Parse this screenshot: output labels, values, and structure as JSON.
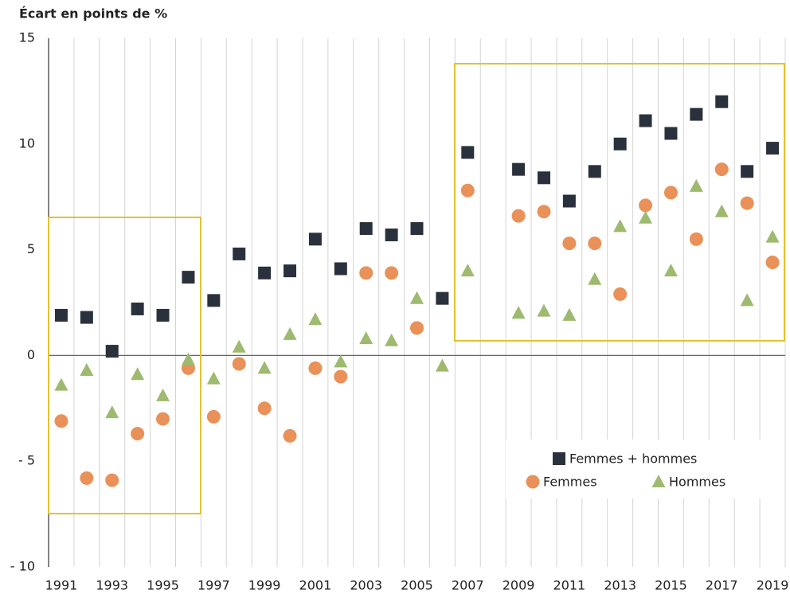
{
  "chart_data": {
    "type": "scatter",
    "title": "Écart en points de %",
    "categories": [
      "1991",
      null,
      "1993",
      null,
      "1995",
      null,
      "1997",
      null,
      "1999",
      null,
      "2001",
      null,
      "2003",
      null,
      "2005",
      null,
      "2007",
      null,
      "2009",
      null,
      "2011",
      null,
      "2013",
      null,
      "2015",
      null,
      "2017",
      null,
      "2019"
    ],
    "ylim": [
      -10,
      15
    ],
    "yticks": [
      {
        "value": -10,
        "label": "- 10"
      },
      {
        "value": -5,
        "label": "- 5"
      },
      0,
      5,
      10,
      15
    ],
    "series": [
      {
        "name": "Femmes + hommes",
        "color": "#2b313c",
        "marker": "square",
        "values": [
          1.9,
          1.8,
          0.2,
          2.2,
          1.9,
          3.7,
          2.6,
          4.8,
          3.9,
          4.0,
          5.5,
          4.1,
          6.0,
          5.7,
          6.0,
          2.7,
          9.6,
          null,
          8.8,
          8.4,
          7.3,
          8.7,
          10.0,
          11.1,
          10.5,
          11.4,
          12.0,
          8.7,
          9.8
        ]
      },
      {
        "name": "Femmes",
        "color": "#e99158",
        "marker": "circle",
        "values": [
          -3.1,
          -5.8,
          -5.9,
          -3.7,
          -3.0,
          -0.6,
          -2.9,
          -0.4,
          -2.5,
          -3.8,
          -0.6,
          -1.0,
          3.9,
          3.9,
          1.3,
          null,
          7.8,
          null,
          6.6,
          6.8,
          5.3,
          5.3,
          2.9,
          7.1,
          7.7,
          5.5,
          8.8,
          7.2,
          4.4
        ]
      },
      {
        "name": "Hommes",
        "color": "#9dba6f",
        "marker": "triangle",
        "values": [
          -1.4,
          -0.7,
          -2.7,
          -0.9,
          -1.9,
          -0.2,
          -1.1,
          0.4,
          -0.6,
          1.0,
          1.7,
          -0.3,
          0.8,
          0.7,
          2.7,
          -0.5,
          4.0,
          null,
          2.0,
          2.1,
          1.9,
          3.6,
          6.1,
          6.5,
          4.0,
          8.0,
          6.8,
          2.6,
          5.6
        ]
      }
    ]
  }
}
